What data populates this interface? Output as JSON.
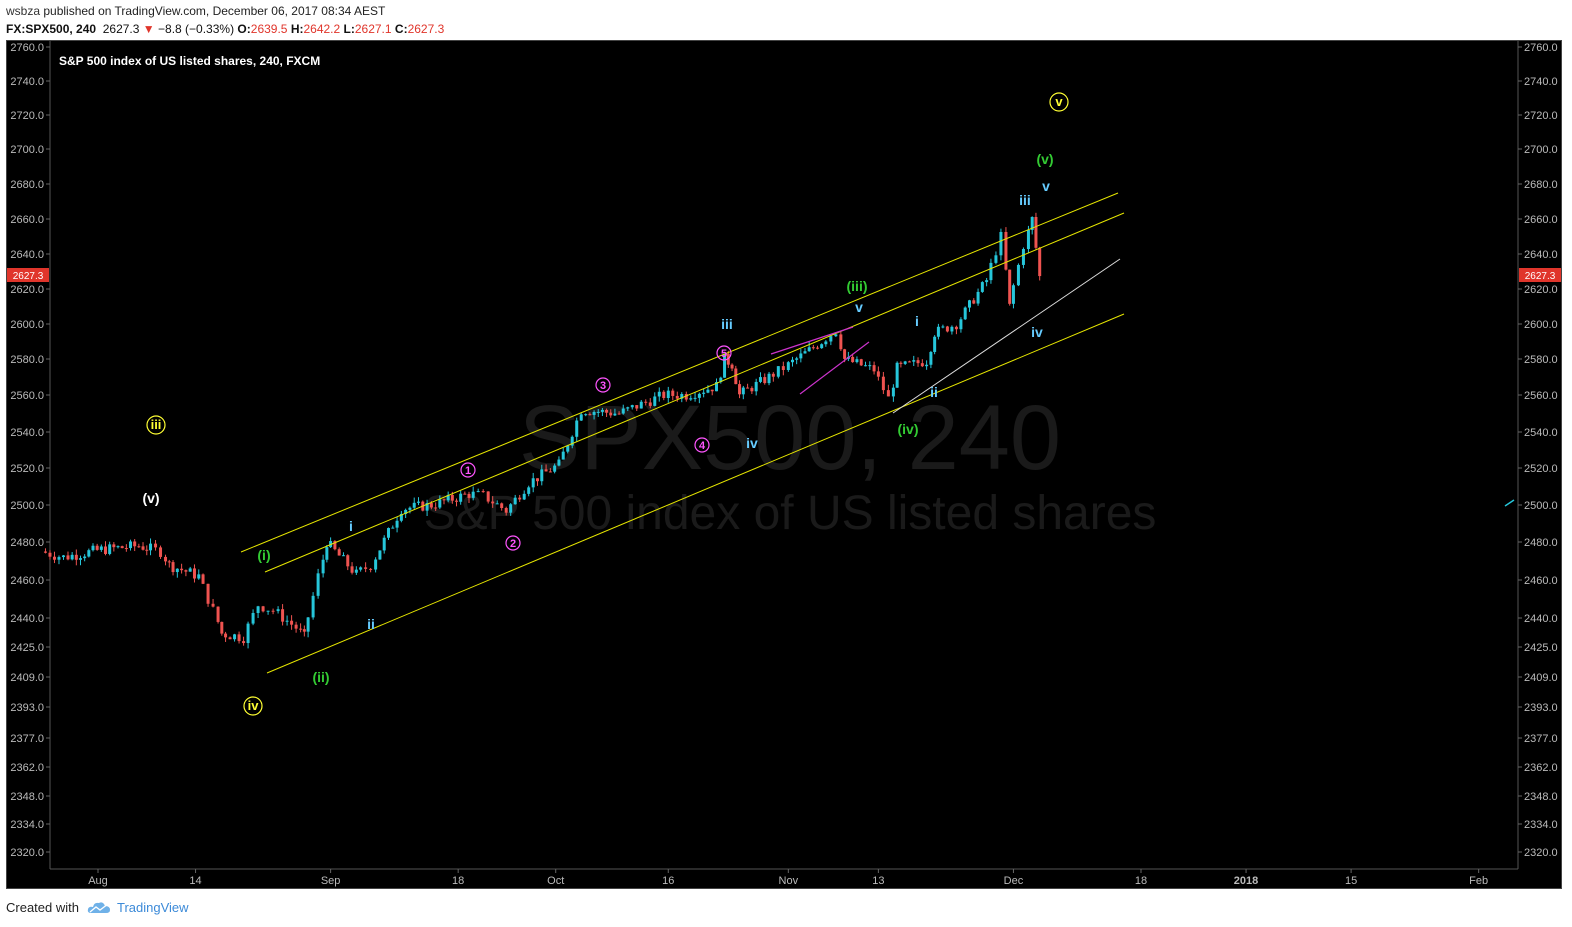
{
  "publish": {
    "user": "wsbza",
    "text": "published on TradingView.com, December 06, 2017 08:34 AEST"
  },
  "quote": {
    "symbol": "FX:SPX500, 240",
    "last": "2627.3",
    "arrow": "▼",
    "change": "−8.8 (−0.33%)",
    "o_label": "O:",
    "o": "2639.5",
    "h_label": "H:",
    "h": "2642.2",
    "l_label": "L:",
    "l": "2627.1",
    "c_label": "C:",
    "c": "2627.3"
  },
  "chart_title": "S&P 500 index of US listed shares, 240, FXCM",
  "watermark": {
    "line1": "SPX500, 240",
    "line2": "S&P 500 index of US listed shares"
  },
  "price_tag": "2627.3",
  "footer": {
    "created": "Created with",
    "brand": "TradingView"
  },
  "colors": {
    "background": "#000000",
    "up": "#26c6da",
    "down": "#ef5350",
    "channel": "#e6e600",
    "wedge": "#cc33cc",
    "trendline": "#dddddd",
    "label_green": "#33cc33",
    "label_cyan": "#66ccff",
    "label_white": "#ffffff",
    "label_yellow": "#ffff33",
    "label_magenta": "#ff55ff",
    "price_tag": "#e0352b"
  },
  "chart_data": {
    "type": "line",
    "title": "S&P 500 index of US listed shares, 240, FXCM",
    "y_ticks": [
      "2760.0",
      "2740.0",
      "2720.0",
      "2700.0",
      "2680.0",
      "2660.0",
      "2640.0",
      "2620.0",
      "2600.0",
      "2580.0",
      "2560.0",
      "2540.0",
      "2520.0",
      "2500.0",
      "2480.0",
      "2460.0",
      "2440.0",
      "2425.0",
      "2409.0",
      "2393.0",
      "2377.0",
      "2362.0",
      "2348.0",
      "2334.0",
      "2320.0"
    ],
    "x_ticks": [
      "Aug",
      "14",
      "Sep",
      "18",
      "Oct",
      "16",
      "Nov",
      "13",
      "Dec",
      "18",
      "2018",
      "15",
      "Feb"
    ],
    "ylim": [
      2310,
      2763
    ],
    "series": [
      {
        "x": [
          "2017-07-25",
          "2017-07-28",
          "2017-08-02",
          "2017-08-07",
          "2017-08-08",
          "2017-08-10",
          "2017-08-11",
          "2017-08-15",
          "2017-08-17",
          "2017-08-18",
          "2017-08-21",
          "2017-08-23",
          "2017-08-25",
          "2017-08-28",
          "2017-08-29",
          "2017-08-31",
          "2017-09-01",
          "2017-09-05",
          "2017-09-07",
          "2017-09-11",
          "2017-09-15",
          "2017-09-20",
          "2017-09-22",
          "2017-09-25",
          "2017-09-28",
          "2017-10-02",
          "2017-10-05",
          "2017-10-10",
          "2017-10-16",
          "2017-10-19",
          "2017-10-23",
          "2017-10-24",
          "2017-10-25",
          "2017-10-26",
          "2017-10-30",
          "2017-11-01",
          "2017-11-06",
          "2017-11-08",
          "2017-11-09",
          "2017-11-13",
          "2017-11-15",
          "2017-11-16",
          "2017-11-20",
          "2017-11-21",
          "2017-11-24",
          "2017-11-28",
          "2017-11-30",
          "2017-12-01",
          "2017-12-03",
          "2017-12-04",
          "2017-12-05"
        ],
        "y": [
          2475,
          2472,
          2476,
          2478,
          2477,
          2475,
          2468,
          2462,
          2444,
          2432,
          2430,
          2447,
          2444,
          2435,
          2430,
          2462,
          2480,
          2463,
          2468,
          2498,
          2500,
          2506,
          2505,
          2497,
          2512,
          2522,
          2552,
          2550,
          2560,
          2560,
          2565,
          2580,
          2577,
          2560,
          2570,
          2575,
          2590,
          2596,
          2580,
          2574,
          2558,
          2575,
          2579,
          2595,
          2600,
          2625,
          2650,
          2610,
          2645,
          2660,
          2627
        ]
      }
    ],
    "annotations": [
      "(v)",
      "iii",
      "iv",
      "(i)",
      "(ii)",
      "i",
      "ii",
      "1",
      "2",
      "3",
      "4",
      "5",
      "iii",
      "iv",
      "(iii)",
      "v",
      "i",
      "ii",
      "(iv)",
      "iii",
      "v",
      "(v)",
      "iv",
      "v"
    ]
  }
}
